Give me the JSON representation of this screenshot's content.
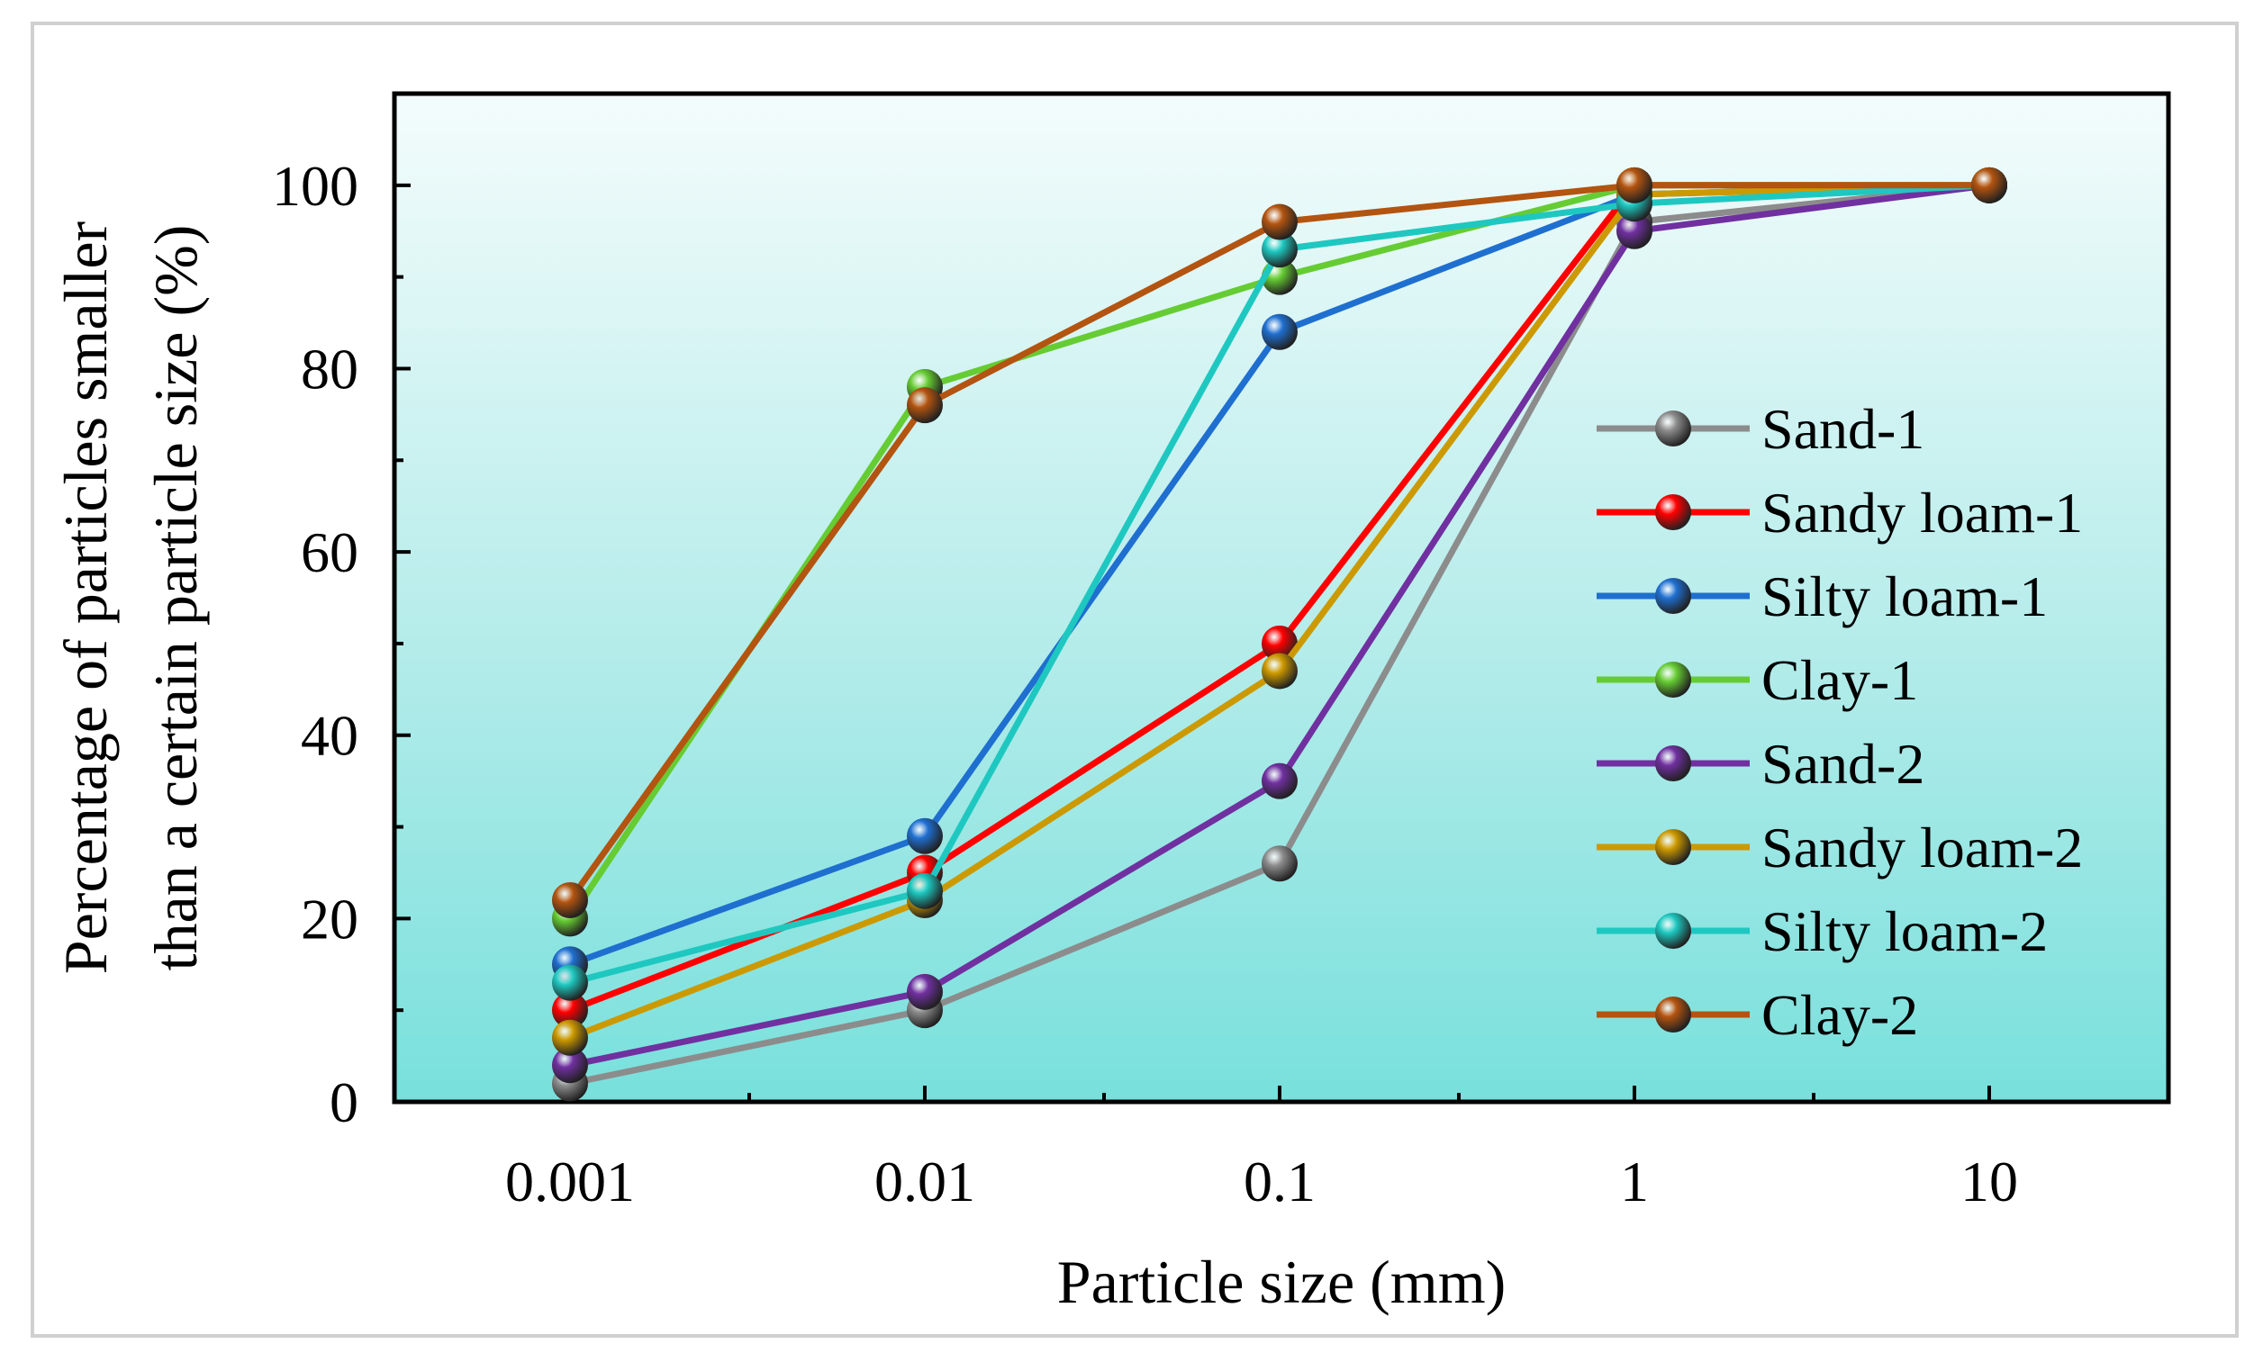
{
  "chart_data": {
    "type": "line",
    "title": "",
    "xlabel": "Particle size (mm)",
    "ylabel_lines": [
      "Percentage of particles smaller",
      "than a certain particle size (%)"
    ],
    "xscale": "log",
    "xlim": [
      0.00032,
      32
    ],
    "ylim": [
      0,
      110
    ],
    "x_ticks": [
      0.001,
      0.01,
      0.1,
      1,
      10
    ],
    "x_tick_labels": [
      "0.001",
      "0.01",
      "0.1",
      "1",
      "10"
    ],
    "y_ticks": [
      0,
      20,
      40,
      60,
      80,
      100
    ],
    "y_tick_labels": [
      "0",
      "20",
      "40",
      "60",
      "80",
      "100"
    ],
    "legend_position": "right",
    "x": [
      0.001,
      0.01,
      0.1,
      1,
      10
    ],
    "series": [
      {
        "name": "Sand-1",
        "color": "#8c8c8c",
        "values": [
          2,
          10,
          26,
          96,
          100
        ]
      },
      {
        "name": "Sandy loam-1",
        "color": "#ff0000",
        "values": [
          10,
          25,
          50,
          100,
          100
        ]
      },
      {
        "name": "Silty loam-1",
        "color": "#1f6fd0",
        "values": [
          15,
          29,
          84,
          99,
          100
        ]
      },
      {
        "name": "Clay-1",
        "color": "#66cc33",
        "values": [
          20,
          78,
          90,
          100,
          100
        ]
      },
      {
        "name": "Sand-2",
        "color": "#7030a0",
        "values": [
          4,
          12,
          35,
          95,
          100
        ]
      },
      {
        "name": "Sandy loam-2",
        "color": "#cc9900",
        "values": [
          7,
          22,
          47,
          99,
          100
        ]
      },
      {
        "name": "Silty loam-2",
        "color": "#1ec8c0",
        "values": [
          13,
          23,
          93,
          98,
          100
        ]
      },
      {
        "name": "Clay-2",
        "color": "#b35410",
        "values": [
          22,
          76,
          96,
          100,
          100
        ]
      }
    ]
  }
}
